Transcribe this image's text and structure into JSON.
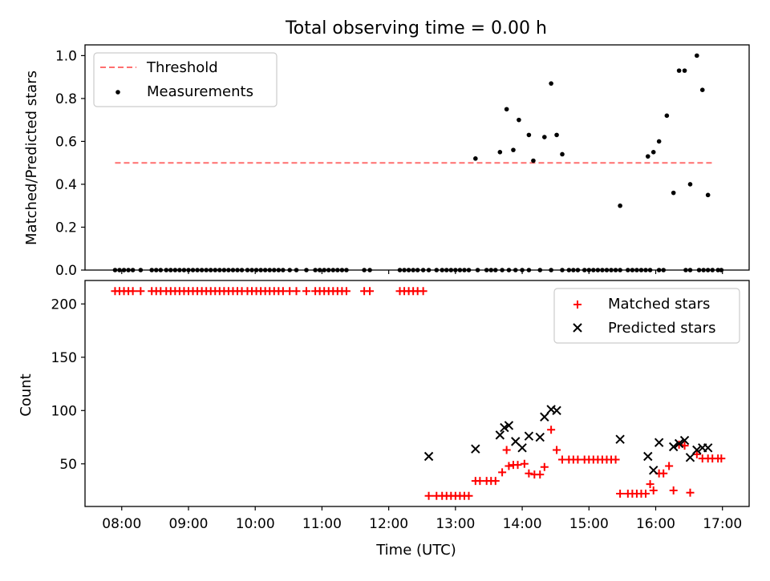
{
  "chart_data": [
    {
      "type": "scatter",
      "title": "Total observing time = 0.00 h",
      "xlabel": "",
      "ylabel": "Matched/Predicted stars",
      "xlim": [
        "07:27",
        "17:24"
      ],
      "ylim": [
        0,
        1.05
      ],
      "yticks": [
        0.0,
        0.2,
        0.4,
        0.6,
        0.8,
        1.0
      ],
      "ytick_labels": [
        "0.0",
        "0.2",
        "0.4",
        "0.6",
        "0.8",
        "1.0"
      ],
      "grid": false,
      "legend_position": "top-left",
      "series": [
        {
          "name": "Threshold",
          "kind": "line",
          "color": "#ff6f6f",
          "x": [
            "07:54",
            "16:53"
          ],
          "y": [
            0.5,
            0.5
          ]
        },
        {
          "name": "Measurements",
          "kind": "scatter",
          "color": "#000000",
          "x": [
            "07:54",
            "07:58",
            "08:02",
            "08:06",
            "08:10",
            "08:17",
            "08:27",
            "08:31",
            "08:35",
            "08:40",
            "08:44",
            "08:48",
            "08:52",
            "08:56",
            "09:00",
            "09:04",
            "09:08",
            "09:12",
            "09:16",
            "09:20",
            "09:24",
            "09:28",
            "09:32",
            "09:36",
            "09:40",
            "09:44",
            "09:48",
            "09:53",
            "09:57",
            "10:01",
            "10:05",
            "10:09",
            "10:13",
            "10:17",
            "10:21",
            "10:25",
            "10:31",
            "10:37",
            "10:46",
            "10:54",
            "10:58",
            "11:02",
            "11:06",
            "11:10",
            "11:14",
            "11:18",
            "11:22",
            "11:38",
            "11:43",
            "12:10",
            "12:14",
            "12:18",
            "12:22",
            "12:26",
            "12:31",
            "12:36",
            "12:43",
            "12:48",
            "12:52",
            "12:56",
            "13:00",
            "13:04",
            "13:08",
            "13:12",
            "13:20",
            "13:28",
            "13:32",
            "13:36",
            "13:42",
            "13:48",
            "13:54",
            "14:00",
            "14:06",
            "14:16",
            "14:26",
            "14:36",
            "14:42",
            "14:46",
            "14:50",
            "14:56",
            "15:00",
            "15:04",
            "15:08",
            "15:12",
            "15:16",
            "15:20",
            "15:24",
            "15:28",
            "15:35",
            "15:39",
            "15:43",
            "15:47",
            "15:51",
            "15:55",
            "16:03",
            "16:07",
            "16:27",
            "16:31",
            "16:39",
            "16:43",
            "16:47",
            "16:51",
            "16:56",
            "16:59",
            "13:18",
            "13:40",
            "13:46",
            "13:52",
            "13:57",
            "14:06",
            "14:10",
            "14:20",
            "14:26",
            "14:31",
            "14:36",
            "15:28",
            "15:53",
            "15:58",
            "16:03",
            "16:10",
            "16:16",
            "16:21",
            "16:26",
            "16:31",
            "16:37",
            "16:42",
            "16:47"
          ],
          "y": [
            0,
            0,
            0,
            0,
            0,
            0,
            0,
            0,
            0,
            0,
            0,
            0,
            0,
            0,
            0,
            0,
            0,
            0,
            0,
            0,
            0,
            0,
            0,
            0,
            0,
            0,
            0,
            0,
            0,
            0,
            0,
            0,
            0,
            0,
            0,
            0,
            0,
            0,
            0,
            0,
            0,
            0,
            0,
            0,
            0,
            0,
            0,
            0,
            0,
            0,
            0,
            0,
            0,
            0,
            0,
            0,
            0,
            0,
            0,
            0,
            0,
            0,
            0,
            0,
            0,
            0,
            0,
            0,
            0,
            0,
            0,
            0,
            0,
            0,
            0,
            0,
            0,
            0,
            0,
            0,
            0,
            0,
            0,
            0,
            0,
            0,
            0,
            0,
            0,
            0,
            0,
            0,
            0,
            0,
            0,
            0,
            0,
            0,
            0,
            0,
            0,
            0,
            0,
            0,
            0.52,
            0.55,
            0.75,
            0.56,
            0.7,
            0.63,
            0.51,
            0.62,
            0.87,
            0.63,
            0.54,
            0.3,
            0.53,
            0.55,
            0.6,
            0.72,
            0.36,
            0.93,
            0.93,
            0.4,
            1.0,
            0.84,
            0.35
          ]
        }
      ]
    },
    {
      "type": "scatter",
      "title": "",
      "xlabel": "Time (UTC)",
      "ylabel": "Count",
      "xlim": [
        "07:27",
        "17:24"
      ],
      "ylim": [
        10,
        222
      ],
      "xticks": [
        "08:00",
        "09:00",
        "10:00",
        "11:00",
        "12:00",
        "13:00",
        "14:00",
        "15:00",
        "16:00",
        "17:00"
      ],
      "yticks": [
        50,
        100,
        150,
        200
      ],
      "ytick_labels": [
        "50",
        "100",
        "150",
        "200"
      ],
      "grid": false,
      "legend_position": "top-right",
      "series": [
        {
          "name": "Matched stars",
          "marker": "plus",
          "color": "#ff0000",
          "x": [
            "07:54",
            "07:58",
            "08:02",
            "08:06",
            "08:10",
            "08:17",
            "08:27",
            "08:31",
            "08:35",
            "08:40",
            "08:44",
            "08:48",
            "08:52",
            "08:56",
            "09:00",
            "09:04",
            "09:08",
            "09:12",
            "09:16",
            "09:20",
            "09:24",
            "09:28",
            "09:32",
            "09:36",
            "09:40",
            "09:44",
            "09:48",
            "09:53",
            "09:57",
            "10:01",
            "10:05",
            "10:09",
            "10:13",
            "10:17",
            "10:21",
            "10:25",
            "10:31",
            "10:37",
            "10:46",
            "10:54",
            "10:58",
            "11:02",
            "11:06",
            "11:10",
            "11:14",
            "11:18",
            "11:22",
            "11:38",
            "11:43",
            "12:10",
            "12:14",
            "12:18",
            "12:22",
            "12:26",
            "12:31",
            "12:36",
            "12:43",
            "12:48",
            "12:52",
            "12:56",
            "13:00",
            "13:04",
            "13:08",
            "13:12",
            "13:18",
            "13:22",
            "13:28",
            "13:32",
            "13:36",
            "13:42",
            "13:46",
            "13:48",
            "13:52",
            "13:56",
            "14:02",
            "14:06",
            "14:11",
            "14:16",
            "14:20",
            "14:26",
            "14:31",
            "14:36",
            "14:42",
            "14:46",
            "14:50",
            "14:56",
            "15:00",
            "15:04",
            "15:08",
            "15:12",
            "15:16",
            "15:20",
            "15:24",
            "15:28",
            "15:35",
            "15:39",
            "15:43",
            "15:47",
            "15:51",
            "15:55",
            "15:58",
            "16:03",
            "16:07",
            "16:12",
            "16:16",
            "16:21",
            "16:26",
            "16:31",
            "16:37",
            "16:42",
            "16:47",
            "16:51",
            "16:56",
            "16:59"
          ],
          "y": [
            212,
            212,
            212,
            212,
            212,
            212,
            212,
            212,
            212,
            212,
            212,
            212,
            212,
            212,
            212,
            212,
            212,
            212,
            212,
            212,
            212,
            212,
            212,
            212,
            212,
            212,
            212,
            212,
            212,
            212,
            212,
            212,
            212,
            212,
            212,
            212,
            212,
            212,
            212,
            212,
            212,
            212,
            212,
            212,
            212,
            212,
            212,
            212,
            212,
            212,
            212,
            212,
            212,
            212,
            212,
            20,
            20,
            20,
            20,
            20,
            20,
            20,
            20,
            20,
            34,
            34,
            34,
            34,
            34,
            42,
            63,
            48,
            49,
            49,
            50,
            41,
            40,
            40,
            47,
            82,
            63,
            54,
            54,
            54,
            54,
            54,
            54,
            54,
            54,
            54,
            54,
            54,
            54,
            22,
            22,
            22,
            22,
            22,
            22,
            31,
            25,
            41,
            41,
            48,
            25,
            68,
            67,
            23,
            59,
            55,
            55,
            55,
            55,
            55
          ]
        },
        {
          "name": "Predicted stars",
          "marker": "x",
          "color": "#000000",
          "x": [
            "12:36",
            "13:18",
            "13:40",
            "13:44",
            "13:48",
            "13:54",
            "14:00",
            "14:06",
            "14:16",
            "14:20",
            "14:26",
            "14:31",
            "15:28",
            "15:53",
            "15:58",
            "16:03",
            "16:16",
            "16:21",
            "16:26",
            "16:31",
            "16:37",
            "16:42",
            "16:47"
          ],
          "y": [
            57,
            64,
            77,
            84,
            86,
            71,
            65,
            76,
            75,
            94,
            101,
            100,
            73,
            57,
            44,
            70,
            66,
            69,
            72,
            56,
            63,
            65,
            65
          ]
        }
      ]
    }
  ]
}
